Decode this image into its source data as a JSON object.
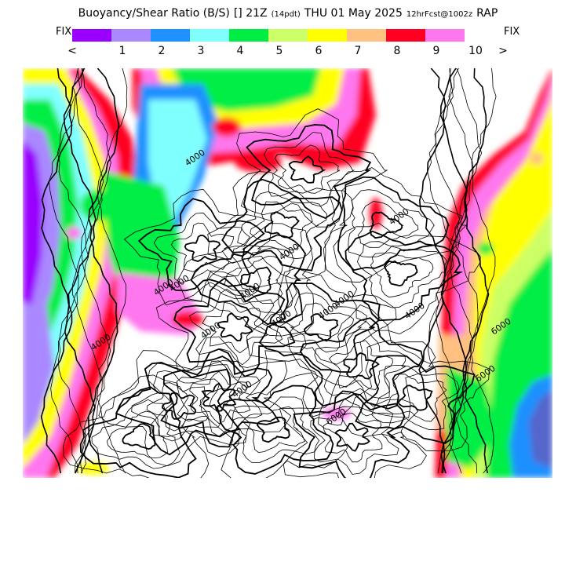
{
  "title": {
    "product": "Buoyancy/Shear Ratio (B/S)",
    "time_box": "[] 21Z",
    "tag": "(14pdt)",
    "date": "THU 01 May 2025",
    "run": "12hrFcst@1002z",
    "model": "RAP"
  },
  "colorbar": {
    "left_label": "FIX",
    "right_label": "FIX",
    "left_arrow": "<",
    "right_arrow": ">",
    "colors": [
      "#9900ff",
      "#aa88ff",
      "#1e90ff",
      "#80ffff",
      "#00ee44",
      "#ccff66",
      "#ffff00",
      "#ffc080",
      "#ff0022",
      "#ff77ee"
    ],
    "ticks": [
      "1",
      "2",
      "3",
      "4",
      "5",
      "6",
      "7",
      "8",
      "9",
      "10"
    ]
  },
  "map": {
    "contour_labels": [
      "4000",
      "4000",
      "4000",
      "4000",
      "4000",
      "4000",
      "4000",
      "4000",
      "4000",
      "4000",
      "4000",
      "4000",
      "4000",
      "6000",
      "6000",
      "6000"
    ]
  }
}
